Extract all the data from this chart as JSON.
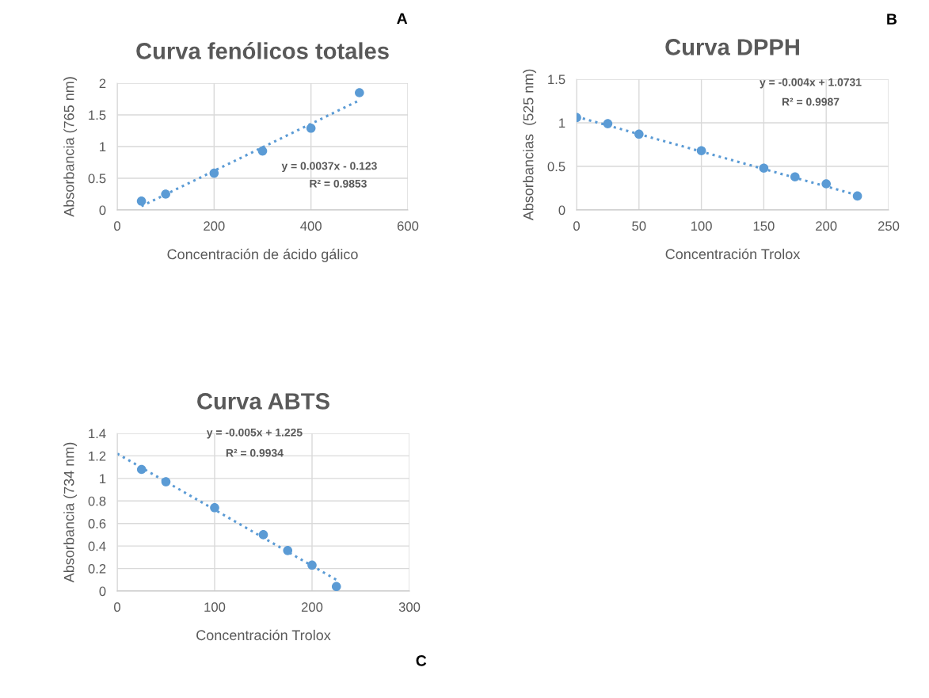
{
  "chart_data": [
    {
      "type": "scatter",
      "title": "Curva fenólicos totales",
      "xlabel": "Concentración de ácido gálico",
      "ylabel": "Absorbancia (765 nm)",
      "xlim": [
        0,
        600
      ],
      "xticks": [
        0,
        200,
        400,
        600
      ],
      "ylim": [
        0,
        2
      ],
      "yticks": [
        0,
        0.5,
        1,
        1.5,
        2
      ],
      "grid": true,
      "series": [
        {
          "color": "#5b9bd5",
          "marker": "circle",
          "x": [
            50,
            100,
            200,
            300,
            400,
            500
          ],
          "values": [
            0.14,
            0.25,
            0.58,
            0.93,
            1.29,
            1.85
          ]
        },
        {
          "type": "line",
          "color": "#5b9bd5",
          "line_style": "dotted",
          "x": [
            50,
            500
          ],
          "values": [
            0.06,
            1.73
          ]
        }
      ],
      "annotations": [
        "y = 0.0037x - 0.123",
        "R² = 0.9853",
        "A"
      ]
    },
    {
      "type": "scatter",
      "title": "Curva DPPH",
      "xlabel": "Concentración Trolox",
      "ylabel": "Absorbancias  (525 nm)",
      "xlim": [
        0,
        250
      ],
      "xticks": [
        0,
        50,
        100,
        150,
        200,
        250
      ],
      "ylim": [
        0,
        1.5
      ],
      "yticks": [
        0,
        0.5,
        1,
        1.5
      ],
      "grid": true,
      "series": [
        {
          "color": "#5b9bd5",
          "marker": "circle",
          "x": [
            0,
            25,
            50,
            100,
            150,
            175,
            200,
            225
          ],
          "values": [
            1.06,
            0.99,
            0.87,
            0.68,
            0.48,
            0.38,
            0.3,
            0.16
          ]
        },
        {
          "type": "line",
          "color": "#5b9bd5",
          "line_style": "dotted",
          "x": [
            0,
            225
          ],
          "values": [
            1.07,
            0.17
          ]
        }
      ],
      "annotations": [
        "y = -0.004x + 1.0731",
        "R² = 0.9987",
        "B"
      ]
    },
    {
      "type": "scatter",
      "title": "Curva ABTS",
      "xlabel": "Concentración Trolox",
      "ylabel": "Absorbancia (734 nm)",
      "xlim": [
        0,
        300
      ],
      "xticks": [
        0,
        100,
        200,
        300
      ],
      "ylim": [
        0,
        1.4
      ],
      "yticks": [
        0,
        0.2,
        0.4,
        0.6,
        0.8,
        1,
        1.2,
        1.4
      ],
      "grid": true,
      "series": [
        {
          "color": "#5b9bd5",
          "marker": "circle",
          "x": [
            25,
            50,
            100,
            150,
            175,
            200,
            225
          ],
          "values": [
            1.08,
            0.97,
            0.74,
            0.5,
            0.36,
            0.23,
            0.04
          ]
        },
        {
          "type": "line",
          "color": "#5b9bd5",
          "line_style": "dotted",
          "x": [
            0,
            225
          ],
          "values": [
            1.22,
            0.1
          ]
        }
      ],
      "annotations": [
        "y = -0.005x + 1.225",
        "R² = 0.9934",
        "C"
      ]
    }
  ]
}
